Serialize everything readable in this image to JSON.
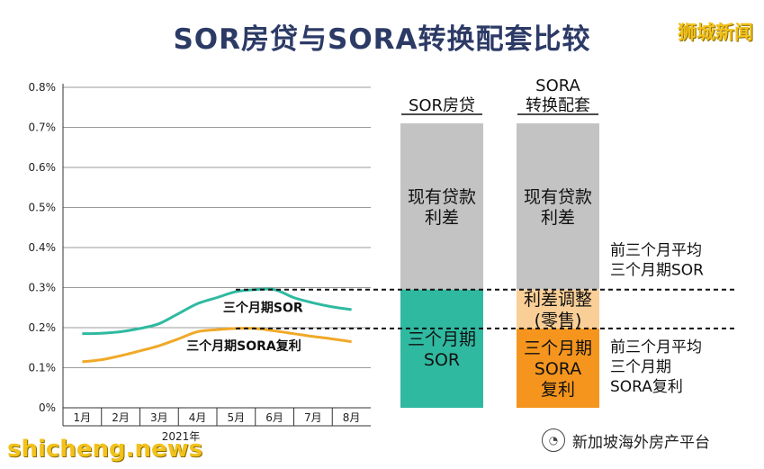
{
  "header": {
    "title": "SOR房贷与SORA转换配套比较",
    "brand": "狮城新闻"
  },
  "chart_data": {
    "type": "line",
    "title": "SOR房贷与SORA转换配套比较",
    "xlabel": "2021年",
    "ylabel": "",
    "ylim": [
      0,
      0.8
    ],
    "yticks": [
      "0%",
      "0.1%",
      "0.2%",
      "0.3%",
      "0.4%",
      "0.5%",
      "0.6%",
      "0.7%",
      "0.8%"
    ],
    "categories": [
      "1月",
      "2月",
      "3月",
      "4月",
      "5月",
      "6月",
      "7月",
      "8月"
    ],
    "x": [
      1,
      1.5,
      2,
      2.5,
      3,
      3.5,
      4,
      4.5,
      5,
      5.5,
      6,
      6.5,
      7,
      7.5,
      8
    ],
    "grid": true,
    "series": [
      {
        "name": "三个月期SOR",
        "color": "#2fb9a0",
        "values": [
          0.185,
          0.186,
          0.19,
          0.198,
          0.21,
          0.235,
          0.26,
          0.275,
          0.29,
          0.295,
          0.295,
          0.275,
          0.262,
          0.252,
          0.245
        ]
      },
      {
        "name": "三个月期SORA复利",
        "color": "#f0a928",
        "values": [
          0.115,
          0.12,
          0.13,
          0.142,
          0.155,
          0.172,
          0.19,
          0.195,
          0.198,
          0.198,
          0.192,
          0.185,
          0.178,
          0.172,
          0.165
        ]
      }
    ],
    "comparison": {
      "columns": [
        {
          "header": [
            "SOR房贷"
          ],
          "segments": [
            {
              "label": [
                "现有贷款",
                "利差"
              ],
              "color": "#c3c3c3",
              "from": 0.295,
              "to": 0.71
            },
            {
              "label": [
                "三个月期",
                "SOR"
              ],
              "color": "#2fb9a0",
              "from": 0.0,
              "to": 0.295
            }
          ]
        },
        {
          "header": [
            "SORA",
            "转换配套"
          ],
          "segments": [
            {
              "label": [
                "现有贷款",
                "利差"
              ],
              "color": "#c3c3c3",
              "from": 0.295,
              "to": 0.71
            },
            {
              "label": [
                "利差调整",
                "(零售)"
              ],
              "color": "#f9cf97",
              "from": 0.198,
              "to": 0.295
            },
            {
              "label": [
                "三个月期",
                "SORA",
                "复利"
              ],
              "color": "#f5951e",
              "from": 0.0,
              "to": 0.198
            }
          ]
        }
      ],
      "reference_lines": [
        {
          "level": 0.295,
          "label": [
            "前三个月平均",
            "三个月期SOR"
          ]
        },
        {
          "level": 0.198,
          "label": [
            "前三个月平均",
            "三个月期",
            "SORA复利"
          ]
        }
      ]
    }
  },
  "footer": {
    "watermark": "shicheng.news",
    "account": "新加坡海外房产平台",
    "account_icon": "wechat-icon"
  }
}
